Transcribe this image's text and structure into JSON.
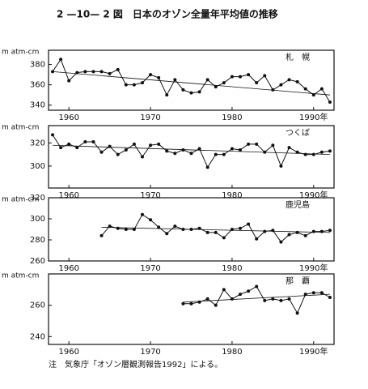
{
  "header": {
    "title": "2 —10— 2 図　日本のオゾン全量年平均値の推移"
  },
  "footer": {
    "note": "注　気象庁「オゾン層観測報告1992」による。"
  },
  "chart_data": [
    {
      "type": "line",
      "station": "札　幌",
      "ylabel": "m atm-cm",
      "color": "#111111",
      "x": [
        1958,
        1959,
        1960,
        1961,
        1962,
        1963,
        1964,
        1965,
        1966,
        1967,
        1968,
        1969,
        1970,
        1971,
        1972,
        1973,
        1974,
        1975,
        1976,
        1977,
        1978,
        1979,
        1980,
        1981,
        1982,
        1983,
        1984,
        1985,
        1986,
        1987,
        1988,
        1989,
        1990,
        1991,
        1992
      ],
      "values": [
        373,
        385,
        364,
        372,
        373,
        373,
        373,
        371,
        375,
        360,
        360,
        362,
        370,
        367,
        350,
        365,
        355,
        352,
        353,
        365,
        358,
        362,
        368,
        368,
        370,
        362,
        369,
        355,
        360,
        365,
        363,
        356,
        350,
        356,
        343
      ],
      "trend": {
        "x": [
          1958,
          1992
        ],
        "values": [
          373,
          350
        ]
      },
      "xlim": [
        1957.5,
        1992.5
      ],
      "ylim": [
        335,
        394
      ],
      "xticks": [
        1960,
        1970,
        1980,
        {
          "value": 1990,
          "label": "1990年"
        }
      ],
      "yticks": [
        340,
        360,
        380
      ]
    },
    {
      "type": "line",
      "station": "つくば",
      "ylabel": "m atm-cm",
      "color": "#111111",
      "x": [
        1958,
        1959,
        1960,
        1961,
        1962,
        1963,
        1964,
        1965,
        1966,
        1967,
        1968,
        1969,
        1970,
        1971,
        1972,
        1973,
        1974,
        1975,
        1976,
        1977,
        1978,
        1979,
        1980,
        1981,
        1982,
        1983,
        1984,
        1985,
        1986,
        1987,
        1988,
        1989,
        1990,
        1991,
        1992
      ],
      "values": [
        327,
        316,
        319,
        316,
        321,
        321,
        312,
        317,
        310,
        314,
        319,
        308,
        318,
        319,
        313,
        311,
        314,
        311,
        315,
        299,
        310,
        310,
        315,
        314,
        319,
        319,
        312,
        318,
        300,
        316,
        312,
        310,
        310,
        312,
        313
      ],
      "trend": {
        "x": [
          1958,
          1992
        ],
        "values": [
          318,
          310
        ]
      },
      "xlim": [
        1957.5,
        1992.5
      ],
      "ylim": [
        281,
        335
      ],
      "xticks": [
        1960,
        1970,
        1980,
        {
          "value": 1990,
          "label": "1990年"
        }
      ],
      "yticks": [
        300,
        320
      ]
    },
    {
      "type": "line",
      "station": "鹿児島",
      "ylabel": "m atm-cm",
      "color": "#111111",
      "x": [
        1964,
        1965,
        1966,
        1967,
        1968,
        1969,
        1970,
        1971,
        1972,
        1973,
        1974,
        1975,
        1976,
        1977,
        1978,
        1979,
        1980,
        1981,
        1982,
        1983,
        1984,
        1985,
        1986,
        1987,
        1988,
        1989,
        1990,
        1991,
        1992
      ],
      "values": [
        284,
        293,
        291,
        290,
        290,
        304,
        299,
        292,
        286,
        293,
        290,
        290,
        291,
        287,
        287,
        282,
        290,
        291,
        295,
        281,
        288,
        289,
        278,
        285,
        287,
        284,
        288,
        288,
        289
      ],
      "trend": {
        "x": [
          1964,
          1992
        ],
        "values": [
          292,
          287
        ]
      },
      "xlim": [
        1957.5,
        1992.5
      ],
      "ylim": [
        260,
        320
      ],
      "xticks": [
        1960,
        1970,
        1980,
        {
          "value": 1990,
          "label": "1990年"
        }
      ],
      "yticks": [
        260,
        280,
        300,
        320
      ]
    },
    {
      "type": "line",
      "station": "那　覇",
      "ylabel": "m atm-cm",
      "color": "#111111",
      "x": [
        1974,
        1975,
        1976,
        1977,
        1978,
        1979,
        1980,
        1981,
        1982,
        1983,
        1984,
        1985,
        1986,
        1987,
        1988,
        1989,
        1990,
        1991,
        1992
      ],
      "values": [
        261,
        261,
        262,
        264,
        260,
        270,
        264,
        267,
        269,
        272,
        263,
        264,
        263,
        264,
        255,
        267,
        268,
        268,
        265
      ],
      "trend": {
        "x": [
          1974,
          1992
        ],
        "values": [
          262,
          267
        ]
      },
      "xlim": [
        1957.5,
        1992.5
      ],
      "ylim": [
        235,
        280
      ],
      "xticks": [
        1960,
        1970,
        1980,
        {
          "value": 1990,
          "label": "1990年"
        }
      ],
      "yticks": [
        240,
        260
      ]
    }
  ]
}
